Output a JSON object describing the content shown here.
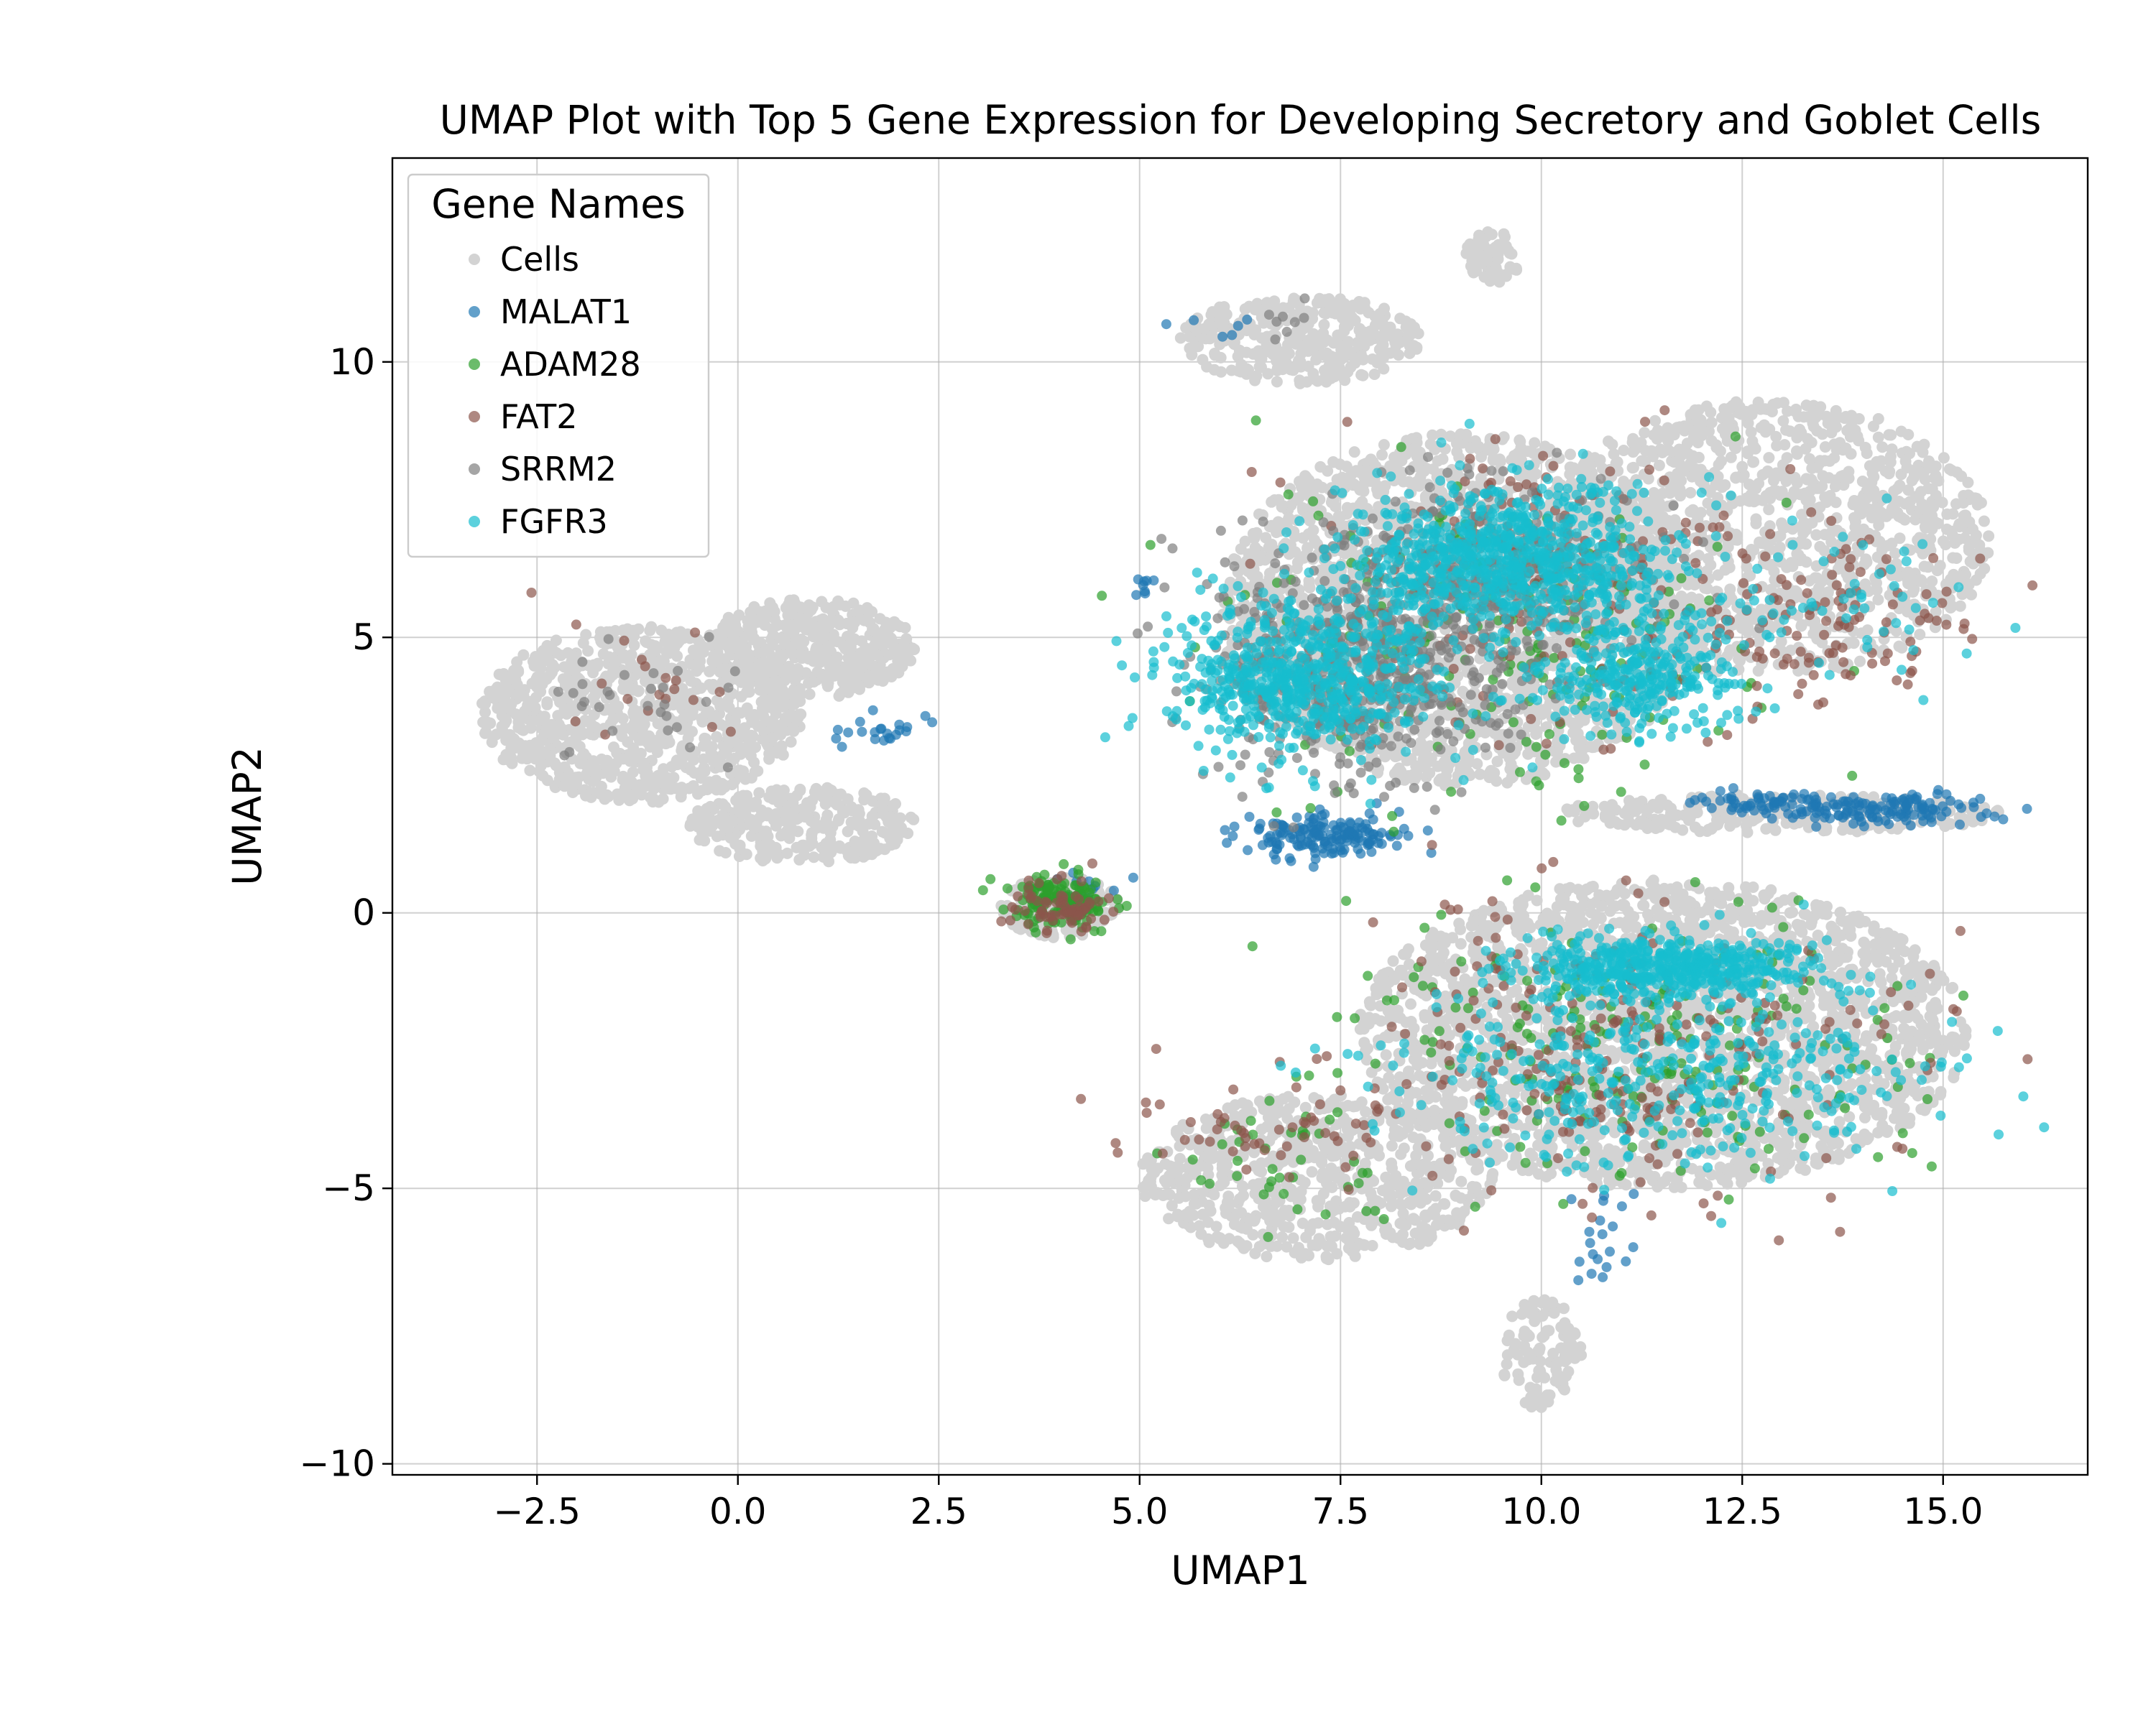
{
  "chart_data": {
    "type": "scatter",
    "title": "UMAP Plot with Top 5 Gene Expression for Developing Secretory and Goblet Cells",
    "xlabel": "UMAP1",
    "ylabel": "UMAP2",
    "xlim": [
      -4.3,
      16.8
    ],
    "ylim": [
      -10.2,
      13.7
    ],
    "xticks": [
      -2.5,
      0.0,
      2.5,
      5.0,
      7.5,
      10.0,
      12.5,
      15.0
    ],
    "xtick_labels": [
      "−2.5",
      "0.0",
      "2.5",
      "5.0",
      "7.5",
      "10.0",
      "12.5",
      "15.0"
    ],
    "yticks": [
      -10,
      -5,
      0,
      5,
      10
    ],
    "ytick_labels": [
      "−10",
      "−5",
      "0",
      "5",
      "10"
    ],
    "grid": true,
    "legend": {
      "title": "Gene Names",
      "position": "top-left",
      "entries": [
        "Cells",
        "MALAT1",
        "ADAM28",
        "FAT2",
        "SRRM2",
        "FGFR3"
      ]
    },
    "series": [
      {
        "name": "Cells",
        "color": "#d3d3d3",
        "regions": [
          {
            "cx": -1.2,
            "cy": 3.6,
            "rx": 2.0,
            "ry": 1.6,
            "n": 900
          },
          {
            "cx": 0.9,
            "cy": 4.8,
            "rx": 1.3,
            "ry": 0.9,
            "n": 450
          },
          {
            "cx": 0.8,
            "cy": 1.6,
            "rx": 1.4,
            "ry": 0.7,
            "n": 300
          },
          {
            "cx": 4.0,
            "cy": 0.1,
            "rx": 0.75,
            "ry": 0.55,
            "n": 200
          },
          {
            "cx": 7.0,
            "cy": 10.4,
            "rx": 1.5,
            "ry": 0.8,
            "n": 350
          },
          {
            "cx": 9.4,
            "cy": 11.9,
            "rx": 0.35,
            "ry": 0.5,
            "n": 60
          },
          {
            "cx": 9.0,
            "cy": 5.5,
            "rx": 3.0,
            "ry": 3.2,
            "n": 2200
          },
          {
            "cx": 12.8,
            "cy": 6.8,
            "rx": 2.8,
            "ry": 2.5,
            "n": 1300
          },
          {
            "cx": 13.0,
            "cy": 1.8,
            "rx": 2.8,
            "ry": 0.35,
            "n": 250
          },
          {
            "cx": 11.5,
            "cy": -2.2,
            "rx": 3.8,
            "ry": 2.8,
            "n": 2400
          },
          {
            "cx": 7.2,
            "cy": -4.8,
            "rx": 2.2,
            "ry": 1.5,
            "n": 700
          },
          {
            "cx": 10.0,
            "cy": -8.0,
            "rx": 0.5,
            "ry": 1.0,
            "n": 100
          }
        ]
      },
      {
        "name": "MALAT1",
        "color": "#1f77b4",
        "regions": [
          {
            "cx": 7.3,
            "cy": 1.4,
            "rx": 1.0,
            "ry": 0.4,
            "n": 160
          },
          {
            "cx": 14.2,
            "cy": 1.9,
            "rx": 1.4,
            "ry": 0.3,
            "n": 140
          },
          {
            "cx": 12.8,
            "cy": 2.0,
            "rx": 0.9,
            "ry": 0.2,
            "n": 45
          },
          {
            "cx": 1.8,
            "cy": 3.3,
            "rx": 0.8,
            "ry": 0.3,
            "n": 22
          },
          {
            "cx": 6.0,
            "cy": 10.5,
            "rx": 0.6,
            "ry": 0.3,
            "n": 6
          },
          {
            "cx": 10.8,
            "cy": -6.0,
            "rx": 0.4,
            "ry": 1.2,
            "n": 20
          },
          {
            "cx": 5.1,
            "cy": 5.9,
            "rx": 0.2,
            "ry": 0.2,
            "n": 8
          },
          {
            "cx": 4.3,
            "cy": 0.4,
            "rx": 0.5,
            "ry": 0.3,
            "n": 12
          }
        ]
      },
      {
        "name": "ADAM28",
        "color": "#2ca02c",
        "regions": [
          {
            "cx": 4.0,
            "cy": 0.2,
            "rx": 0.65,
            "ry": 0.5,
            "n": 150
          },
          {
            "cx": 9.5,
            "cy": 5.0,
            "rx": 3.0,
            "ry": 2.8,
            "n": 200
          },
          {
            "cx": 11.0,
            "cy": -2.5,
            "rx": 3.5,
            "ry": 2.5,
            "n": 220
          },
          {
            "cx": 7.0,
            "cy": -4.5,
            "rx": 1.8,
            "ry": 1.2,
            "n": 40
          }
        ]
      },
      {
        "name": "FAT2",
        "color": "#8c564b",
        "regions": [
          {
            "cx": 13.5,
            "cy": 5.3,
            "rx": 2.0,
            "ry": 1.6,
            "n": 120
          },
          {
            "cx": 11.0,
            "cy": -2.5,
            "rx": 3.6,
            "ry": 2.5,
            "n": 260
          },
          {
            "cx": 10.0,
            "cy": 6.0,
            "rx": 2.5,
            "ry": 2.8,
            "n": 180
          },
          {
            "cx": -1.0,
            "cy": 4.0,
            "rx": 1.3,
            "ry": 1.2,
            "n": 20
          },
          {
            "cx": 6.5,
            "cy": -4.0,
            "rx": 1.6,
            "ry": 0.8,
            "n": 50
          },
          {
            "cx": 4.0,
            "cy": 0.1,
            "rx": 0.6,
            "ry": 0.45,
            "n": 70
          }
        ]
      },
      {
        "name": "SRRM2",
        "color": "#7f7f7f",
        "regions": [
          {
            "cx": 7.8,
            "cy": 4.5,
            "rx": 2.0,
            "ry": 2.0,
            "n": 600
          },
          {
            "cx": 9.5,
            "cy": 6.2,
            "rx": 2.0,
            "ry": 1.6,
            "n": 300
          },
          {
            "cx": -1.2,
            "cy": 4.0,
            "rx": 1.4,
            "ry": 1.2,
            "n": 30
          },
          {
            "cx": 6.9,
            "cy": 10.7,
            "rx": 0.3,
            "ry": 0.3,
            "n": 8
          }
        ]
      },
      {
        "name": "FGFR3",
        "color": "#17becf",
        "regions": [
          {
            "cx": 7.0,
            "cy": 4.2,
            "rx": 1.6,
            "ry": 1.4,
            "n": 600
          },
          {
            "cx": 9.6,
            "cy": 6.4,
            "rx": 2.0,
            "ry": 1.3,
            "n": 800
          },
          {
            "cx": 11.2,
            "cy": 4.3,
            "rx": 1.4,
            "ry": 1.0,
            "n": 300
          },
          {
            "cx": 11.5,
            "cy": -1.0,
            "rx": 1.8,
            "ry": 0.6,
            "n": 500
          },
          {
            "cx": 11.5,
            "cy": -3.0,
            "rx": 3.5,
            "ry": 1.6,
            "n": 400
          },
          {
            "cx": 13.5,
            "cy": 5.5,
            "rx": 2.0,
            "ry": 1.5,
            "n": 60
          }
        ]
      }
    ]
  }
}
